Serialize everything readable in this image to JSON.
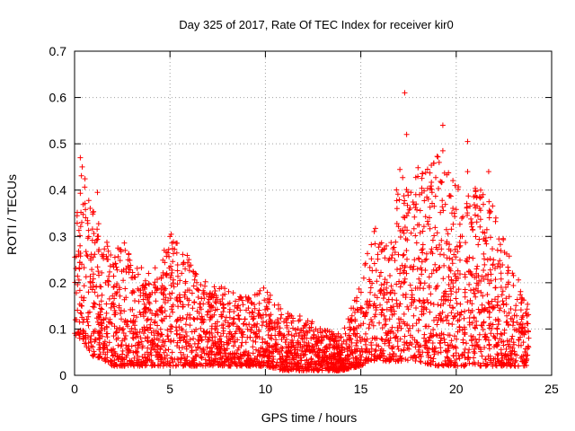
{
  "chart_data": {
    "type": "scatter",
    "title": "Day 325 of 2017, Rate Of TEC Index for receiver kir0",
    "xlabel": "GPS time / hours",
    "ylabel": "ROTI / TECUs",
    "xlim": [
      0,
      25
    ],
    "ylim": [
      0,
      0.7
    ],
    "x_ticks": [
      0,
      5,
      10,
      15,
      20,
      25
    ],
    "y_ticks": [
      0,
      0.1,
      0.2,
      0.3,
      0.4,
      0.5,
      0.6,
      0.7
    ],
    "x_tick_labels": [
      "0",
      "5",
      "10",
      "15",
      "20",
      "25"
    ],
    "y_tick_labels": [
      "0",
      "0.1",
      "0.2",
      "0.3",
      "0.4",
      "0.5",
      "0.6",
      "0.7"
    ],
    "grid": true,
    "marker": "plus",
    "color": "#ff0000",
    "x_range_of_data": [
      0,
      23.8
    ],
    "envelope": [
      {
        "x": 0.0,
        "lo": 0.08,
        "hi": 0.3
      },
      {
        "x": 0.3,
        "lo": 0.08,
        "hi": 0.47
      },
      {
        "x": 1.0,
        "lo": 0.04,
        "hi": 0.36
      },
      {
        "x": 1.5,
        "lo": 0.03,
        "hi": 0.3
      },
      {
        "x": 2.0,
        "lo": 0.02,
        "hi": 0.27
      },
      {
        "x": 2.5,
        "lo": 0.02,
        "hi": 0.3
      },
      {
        "x": 3.0,
        "lo": 0.02,
        "hi": 0.25
      },
      {
        "x": 4.0,
        "lo": 0.02,
        "hi": 0.22
      },
      {
        "x": 5.0,
        "lo": 0.02,
        "hi": 0.31
      },
      {
        "x": 6.0,
        "lo": 0.02,
        "hi": 0.26
      },
      {
        "x": 7.0,
        "lo": 0.02,
        "hi": 0.2
      },
      {
        "x": 8.0,
        "lo": 0.02,
        "hi": 0.19
      },
      {
        "x": 9.0,
        "lo": 0.02,
        "hi": 0.18
      },
      {
        "x": 10.0,
        "lo": 0.02,
        "hi": 0.19
      },
      {
        "x": 11.0,
        "lo": 0.01,
        "hi": 0.14
      },
      {
        "x": 12.0,
        "lo": 0.01,
        "hi": 0.13
      },
      {
        "x": 13.0,
        "lo": 0.01,
        "hi": 0.1
      },
      {
        "x": 14.0,
        "lo": 0.01,
        "hi": 0.09
      },
      {
        "x": 15.0,
        "lo": 0.02,
        "hi": 0.2
      },
      {
        "x": 15.5,
        "lo": 0.03,
        "hi": 0.35
      },
      {
        "x": 16.5,
        "lo": 0.03,
        "hi": 0.27
      },
      {
        "x": 17.0,
        "lo": 0.03,
        "hi": 0.45
      },
      {
        "x": 17.5,
        "lo": 0.03,
        "hi": 0.4
      },
      {
        "x": 18.0,
        "lo": 0.03,
        "hi": 0.45
      },
      {
        "x": 19.0,
        "lo": 0.02,
        "hi": 0.48
      },
      {
        "x": 20.0,
        "lo": 0.02,
        "hi": 0.42
      },
      {
        "x": 20.5,
        "lo": 0.02,
        "hi": 0.38
      },
      {
        "x": 21.5,
        "lo": 0.02,
        "hi": 0.44
      },
      {
        "x": 22.0,
        "lo": 0.02,
        "hi": 0.36
      },
      {
        "x": 23.0,
        "lo": 0.02,
        "hi": 0.24
      },
      {
        "x": 23.8,
        "lo": 0.02,
        "hi": 0.17
      }
    ],
    "outliers": [
      {
        "x": 0.3,
        "y": 0.47
      },
      {
        "x": 0.4,
        "y": 0.45
      },
      {
        "x": 1.2,
        "y": 0.395
      },
      {
        "x": 17.3,
        "y": 0.61
      },
      {
        "x": 17.4,
        "y": 0.52
      },
      {
        "x": 18.5,
        "y": 0.445
      },
      {
        "x": 19.3,
        "y": 0.54
      },
      {
        "x": 19.3,
        "y": 0.485
      },
      {
        "x": 20.6,
        "y": 0.505
      },
      {
        "x": 20.6,
        "y": 0.44
      },
      {
        "x": 21.7,
        "y": 0.44
      }
    ],
    "samples_per_hour": 140,
    "seed": 325
  }
}
